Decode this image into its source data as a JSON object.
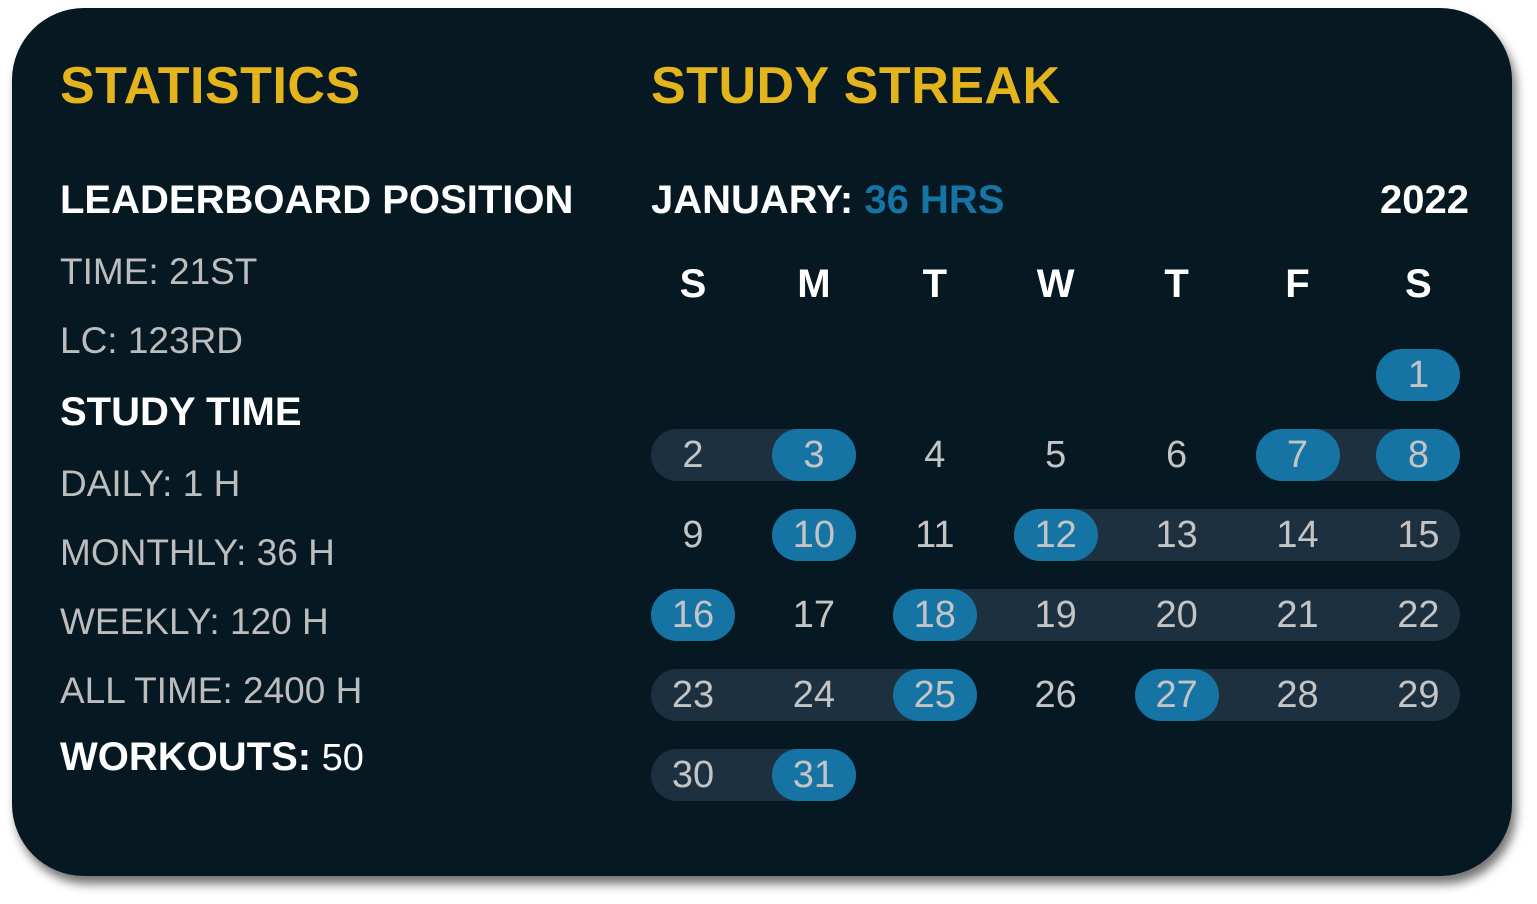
{
  "statistics": {
    "title": "STATISTICS",
    "leaderboard_heading": "LEADERBOARD POSITION",
    "time_rank": "TIME: 21ST",
    "lc_rank": "LC: 123RD",
    "study_time_heading": "STUDY TIME",
    "daily": "DAILY: 1 H",
    "monthly": "MONTHLY: 36 H",
    "weekly": "WEEKLY: 120 H",
    "all_time": "ALL TIME: 2400 H",
    "workouts_label": "WORKOUTS:",
    "workouts_value": " 50"
  },
  "streak": {
    "title": "STUDY STREAK",
    "month_label": "JANUARY: ",
    "month_hours": "36 HRS",
    "year": "2022",
    "weekdays": [
      "S",
      "M",
      "T",
      "W",
      "T",
      "F",
      "S"
    ],
    "first_weekday_index": 6,
    "days_in_month": 31,
    "highlighted_days": [
      1,
      3,
      7,
      8,
      10,
      12,
      16,
      18,
      25,
      27,
      31
    ],
    "streak_ranges": [
      [
        2,
        3
      ],
      [
        7,
        8
      ],
      [
        12,
        15
      ],
      [
        18,
        22
      ],
      [
        23,
        25
      ],
      [
        27,
        29
      ],
      [
        30,
        31
      ]
    ]
  },
  "colors": {
    "background": "#061822",
    "accent_yellow": "#e4b41c",
    "accent_blue": "#1674a4",
    "streak_band": "#1c3040"
  }
}
